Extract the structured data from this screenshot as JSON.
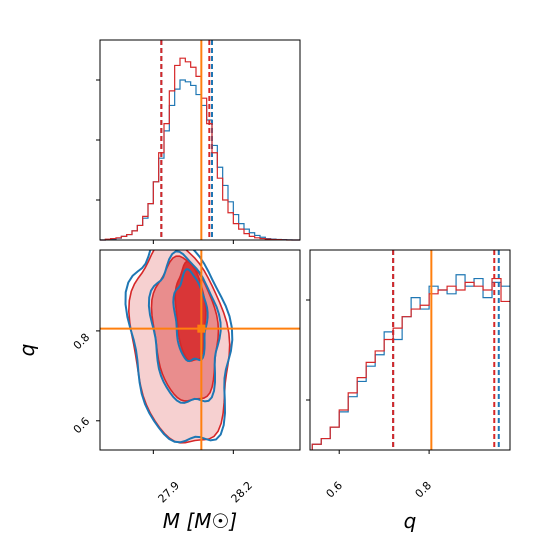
{
  "chart_data": {
    "type": "corner",
    "params": [
      {
        "name": "M",
        "label": "M [M☉]",
        "range": [
          27.7,
          28.45
        ],
        "ticks": [
          27.9,
          28.2
        ],
        "tick_labels": [
          "27.9",
          "28.2"
        ],
        "truth": 28.08
      },
      {
        "name": "q",
        "label": "q",
        "range": [
          0.535,
          0.98
        ],
        "ticks": [
          0.6,
          0.8
        ],
        "tick_labels": [
          "0.6",
          "0.8"
        ],
        "truth": 0.805
      }
    ],
    "series": [
      {
        "color": "#1f77b4",
        "quantiles": {
          "M": [
            27.93,
            28.12
          ],
          "q": [
            0.72,
            0.955
          ]
        },
        "hist_M": {
          "x": [
            27.7,
            27.72,
            27.74,
            27.76,
            27.78,
            27.8,
            27.82,
            27.84,
            27.86,
            27.88,
            27.9,
            27.92,
            27.94,
            27.96,
            27.98,
            28.0,
            28.02,
            28.04,
            28.06,
            28.08,
            28.1,
            28.12,
            28.14,
            28.16,
            28.18,
            28.2,
            28.22,
            28.24,
            28.26,
            28.28,
            28.3,
            28.32,
            28.34,
            28.36,
            28.38,
            28.4,
            28.42,
            28.44
          ],
          "y": [
            0.0,
            0.003,
            0.006,
            0.01,
            0.02,
            0.03,
            0.05,
            0.08,
            0.12,
            0.2,
            0.32,
            0.45,
            0.6,
            0.74,
            0.83,
            0.88,
            0.87,
            0.85,
            0.8,
            0.74,
            0.66,
            0.52,
            0.4,
            0.3,
            0.21,
            0.14,
            0.09,
            0.06,
            0.04,
            0.025,
            0.015,
            0.008,
            0.005,
            0.003,
            0.002,
            0.001,
            0.0,
            0.0
          ]
        },
        "hist_q": {
          "x": [
            0.54,
            0.56,
            0.58,
            0.6,
            0.62,
            0.64,
            0.66,
            0.68,
            0.7,
            0.72,
            0.74,
            0.76,
            0.78,
            0.8,
            0.82,
            0.84,
            0.86,
            0.88,
            0.9,
            0.92,
            0.94,
            0.96
          ],
          "y": [
            0.03,
            0.06,
            0.12,
            0.2,
            0.28,
            0.36,
            0.44,
            0.5,
            0.62,
            0.58,
            0.7,
            0.8,
            0.74,
            0.86,
            0.84,
            0.82,
            0.92,
            0.86,
            0.9,
            0.8,
            0.88,
            0.86
          ]
        }
      },
      {
        "color": "#d62728",
        "quantiles": {
          "M": [
            27.93,
            28.11
          ],
          "q": [
            0.72,
            0.945
          ]
        },
        "hist_M": {
          "x": [
            27.7,
            27.72,
            27.74,
            27.76,
            27.78,
            27.8,
            27.82,
            27.84,
            27.86,
            27.88,
            27.9,
            27.92,
            27.94,
            27.96,
            27.98,
            28.0,
            28.02,
            28.04,
            28.06,
            28.08,
            28.1,
            28.12,
            28.14,
            28.16,
            28.18,
            28.2,
            28.22,
            28.24,
            28.26,
            28.28,
            28.3,
            28.32,
            28.34,
            28.36,
            28.38,
            28.4,
            28.42,
            28.44
          ],
          "y": [
            0.0,
            0.004,
            0.008,
            0.012,
            0.02,
            0.03,
            0.05,
            0.08,
            0.13,
            0.2,
            0.32,
            0.48,
            0.64,
            0.82,
            0.96,
            1.0,
            0.98,
            0.95,
            0.9,
            0.78,
            0.64,
            0.48,
            0.34,
            0.22,
            0.15,
            0.09,
            0.06,
            0.035,
            0.02,
            0.012,
            0.008,
            0.005,
            0.003,
            0.002,
            0.001,
            0.0,
            0.0,
            0.0
          ]
        },
        "hist_q": {
          "x": [
            0.54,
            0.56,
            0.58,
            0.6,
            0.62,
            0.64,
            0.66,
            0.68,
            0.7,
            0.72,
            0.74,
            0.76,
            0.78,
            0.8,
            0.82,
            0.84,
            0.86,
            0.88,
            0.9,
            0.92,
            0.94,
            0.96
          ],
          "y": [
            0.03,
            0.06,
            0.12,
            0.21,
            0.3,
            0.38,
            0.46,
            0.52,
            0.58,
            0.64,
            0.7,
            0.74,
            0.76,
            0.82,
            0.84,
            0.86,
            0.84,
            0.88,
            0.86,
            0.84,
            0.9,
            0.78
          ]
        }
      }
    ],
    "contours_2d": [
      {
        "series": 0,
        "level": "outer",
        "center": [
          28.0,
          0.78
        ],
        "axes": [
          0.185,
          0.235
        ],
        "tilt": 0.1
      },
      {
        "series": 0,
        "level": "middle",
        "center": [
          28.02,
          0.8
        ],
        "axes": [
          0.125,
          0.165
        ],
        "tilt": 0.08
      },
      {
        "series": 0,
        "level": "inner",
        "center": [
          28.04,
          0.83
        ],
        "axes": [
          0.06,
          0.1
        ],
        "tilt": 0.05
      },
      {
        "series": 1,
        "level": "outer",
        "center": [
          28.0,
          0.77
        ],
        "axes": [
          0.18,
          0.225
        ],
        "tilt": 0.1
      },
      {
        "series": 1,
        "level": "middle",
        "center": [
          28.02,
          0.8
        ],
        "axes": [
          0.12,
          0.16
        ],
        "tilt": 0.08
      },
      {
        "series": 1,
        "level": "inner",
        "center": [
          28.04,
          0.84
        ],
        "axes": [
          0.055,
          0.11
        ],
        "tilt": 0.05
      }
    ],
    "truth_color": "#ff7f0e"
  }
}
